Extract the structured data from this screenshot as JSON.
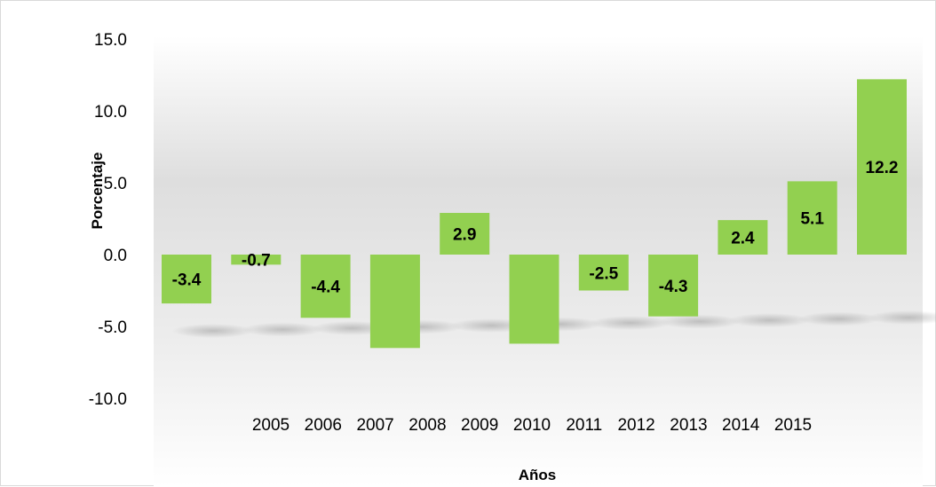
{
  "chart_data": {
    "type": "bar",
    "title": "",
    "xlabel": "Años",
    "ylabel": "Porcentaje",
    "ylim": [
      -10,
      15
    ],
    "yticks": [
      15.0,
      10.0,
      5.0,
      0.0,
      -5.0,
      -10.0
    ],
    "ytick_labels": [
      "15.0",
      "10.0",
      "5.0",
      "0.0",
      "-5.0",
      "-10.0"
    ],
    "categories": [
      "2005",
      "2006",
      "2007",
      "2008",
      "2009",
      "2010",
      "2011",
      "2012",
      "2013",
      "2014",
      "2015"
    ],
    "series": [
      {
        "values": [
          -3.4,
          -0.7,
          -4.4,
          -6.5,
          2.9,
          -6.2,
          -2.5,
          -4.3,
          2.4,
          5.1,
          12.2
        ],
        "data_labels": [
          "-3.4",
          "-0.7",
          "-4.4",
          "",
          "2.9",
          "",
          "-2.5",
          "-4.3",
          "2.4",
          "5.1",
          "12.2"
        ]
      }
    ],
    "bar_color": "#92d050",
    "grid": false,
    "legend": "none"
  }
}
